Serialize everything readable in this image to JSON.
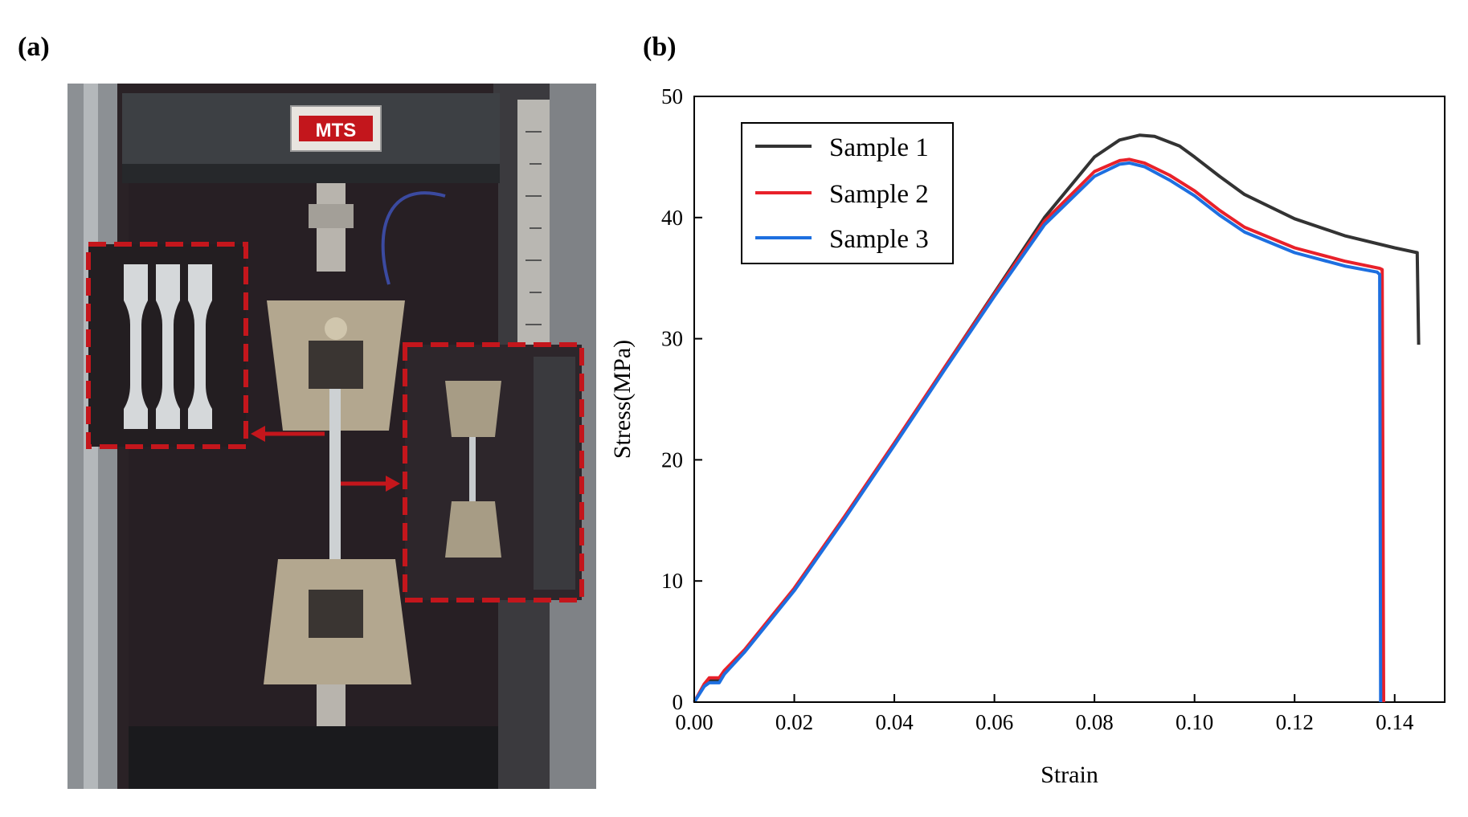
{
  "panels": {
    "a_label": "(a)",
    "b_label": "(b)"
  },
  "photo": {
    "machine_logo": "MTS"
  },
  "colors": {
    "sample1": "#333333",
    "sample2": "#e8212a",
    "sample3": "#1d6fe0",
    "highlight_box": "#c4161c"
  },
  "chart_data": {
    "type": "line",
    "title": "",
    "xlabel": "Strain",
    "ylabel": "Stress(MPa)",
    "xlim": [
      0,
      0.15
    ],
    "ylim": [
      0,
      50
    ],
    "xticks": [
      "0.00",
      "0.02",
      "0.04",
      "0.06",
      "0.08",
      "0.10",
      "0.12",
      "0.14"
    ],
    "yticks": [
      "0",
      "10",
      "20",
      "30",
      "40",
      "50"
    ],
    "legend_position": "top-left",
    "grid": false,
    "series": [
      {
        "name": "Sample 1",
        "color": "#333333",
        "points": [
          [
            0,
            0
          ],
          [
            0.002,
            1.4
          ],
          [
            0.003,
            1.8
          ],
          [
            0.005,
            1.8
          ],
          [
            0.006,
            2.5
          ],
          [
            0.01,
            4.2
          ],
          [
            0.02,
            9.3
          ],
          [
            0.03,
            15.2
          ],
          [
            0.04,
            21.3
          ],
          [
            0.05,
            27.6
          ],
          [
            0.06,
            33.8
          ],
          [
            0.07,
            40.0
          ],
          [
            0.08,
            45.0
          ],
          [
            0.085,
            46.4
          ],
          [
            0.089,
            46.8
          ],
          [
            0.092,
            46.7
          ],
          [
            0.097,
            45.9
          ],
          [
            0.1,
            45.0
          ],
          [
            0.105,
            43.4
          ],
          [
            0.11,
            41.9
          ],
          [
            0.12,
            39.9
          ],
          [
            0.13,
            38.5
          ],
          [
            0.14,
            37.5
          ],
          [
            0.1445,
            37.1
          ],
          [
            0.1448,
            29.5
          ]
        ]
      },
      {
        "name": "Sample 2",
        "color": "#e8212a",
        "points": [
          [
            0,
            0
          ],
          [
            0.002,
            1.5
          ],
          [
            0.003,
            2.0
          ],
          [
            0.005,
            2.0
          ],
          [
            0.006,
            2.6
          ],
          [
            0.01,
            4.3
          ],
          [
            0.02,
            9.4
          ],
          [
            0.03,
            15.3
          ],
          [
            0.04,
            21.4
          ],
          [
            0.05,
            27.6
          ],
          [
            0.06,
            33.7
          ],
          [
            0.07,
            39.7
          ],
          [
            0.08,
            43.8
          ],
          [
            0.085,
            44.7
          ],
          [
            0.087,
            44.8
          ],
          [
            0.09,
            44.5
          ],
          [
            0.095,
            43.5
          ],
          [
            0.1,
            42.2
          ],
          [
            0.105,
            40.6
          ],
          [
            0.11,
            39.2
          ],
          [
            0.12,
            37.5
          ],
          [
            0.13,
            36.4
          ],
          [
            0.137,
            35.8
          ],
          [
            0.1375,
            35.7
          ],
          [
            0.1378,
            0
          ]
        ]
      },
      {
        "name": "Sample 3",
        "color": "#1d6fe0",
        "points": [
          [
            0,
            0
          ],
          [
            0.002,
            1.3
          ],
          [
            0.003,
            1.6
          ],
          [
            0.005,
            1.6
          ],
          [
            0.006,
            2.3
          ],
          [
            0.01,
            4.1
          ],
          [
            0.02,
            9.2
          ],
          [
            0.03,
            15.1
          ],
          [
            0.04,
            21.2
          ],
          [
            0.05,
            27.4
          ],
          [
            0.06,
            33.5
          ],
          [
            0.07,
            39.4
          ],
          [
            0.08,
            43.4
          ],
          [
            0.085,
            44.4
          ],
          [
            0.087,
            44.5
          ],
          [
            0.09,
            44.2
          ],
          [
            0.095,
            43.1
          ],
          [
            0.1,
            41.8
          ],
          [
            0.105,
            40.2
          ],
          [
            0.11,
            38.8
          ],
          [
            0.12,
            37.1
          ],
          [
            0.13,
            36.0
          ],
          [
            0.1365,
            35.5
          ],
          [
            0.137,
            35.3
          ],
          [
            0.1372,
            0
          ]
        ]
      }
    ]
  }
}
